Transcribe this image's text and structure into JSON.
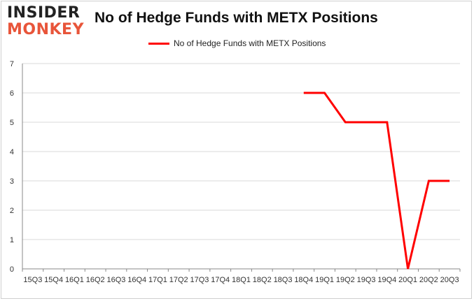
{
  "brand": {
    "line1": "INSIDER",
    "line2": "MONKEY"
  },
  "colors": {
    "series": "#ff0000",
    "grid": "#d9d9d9",
    "axis": "#888888",
    "brand_accent": "#e8553a"
  },
  "chart_data": {
    "type": "line",
    "title": "No of Hedge Funds with METX Positions",
    "xlabel": "",
    "ylabel": "",
    "ylim": [
      0,
      7
    ],
    "yticks": [
      0,
      1,
      2,
      3,
      4,
      5,
      6,
      7
    ],
    "grid": true,
    "legend_position": "top-center",
    "categories": [
      "15Q3",
      "15Q4",
      "16Q1",
      "16Q2",
      "16Q3",
      "16Q4",
      "17Q1",
      "17Q2",
      "17Q3",
      "17Q4",
      "18Q1",
      "18Q2",
      "18Q3",
      "18Q4",
      "19Q1",
      "19Q2",
      "19Q3",
      "19Q4",
      "20Q1",
      "20Q2",
      "20Q3"
    ],
    "series": [
      {
        "name": "No of Hedge Funds with METX Positions",
        "values": [
          null,
          null,
          null,
          null,
          null,
          null,
          null,
          null,
          null,
          null,
          null,
          null,
          null,
          6,
          6,
          5,
          5,
          5,
          0,
          3,
          3
        ]
      }
    ]
  }
}
